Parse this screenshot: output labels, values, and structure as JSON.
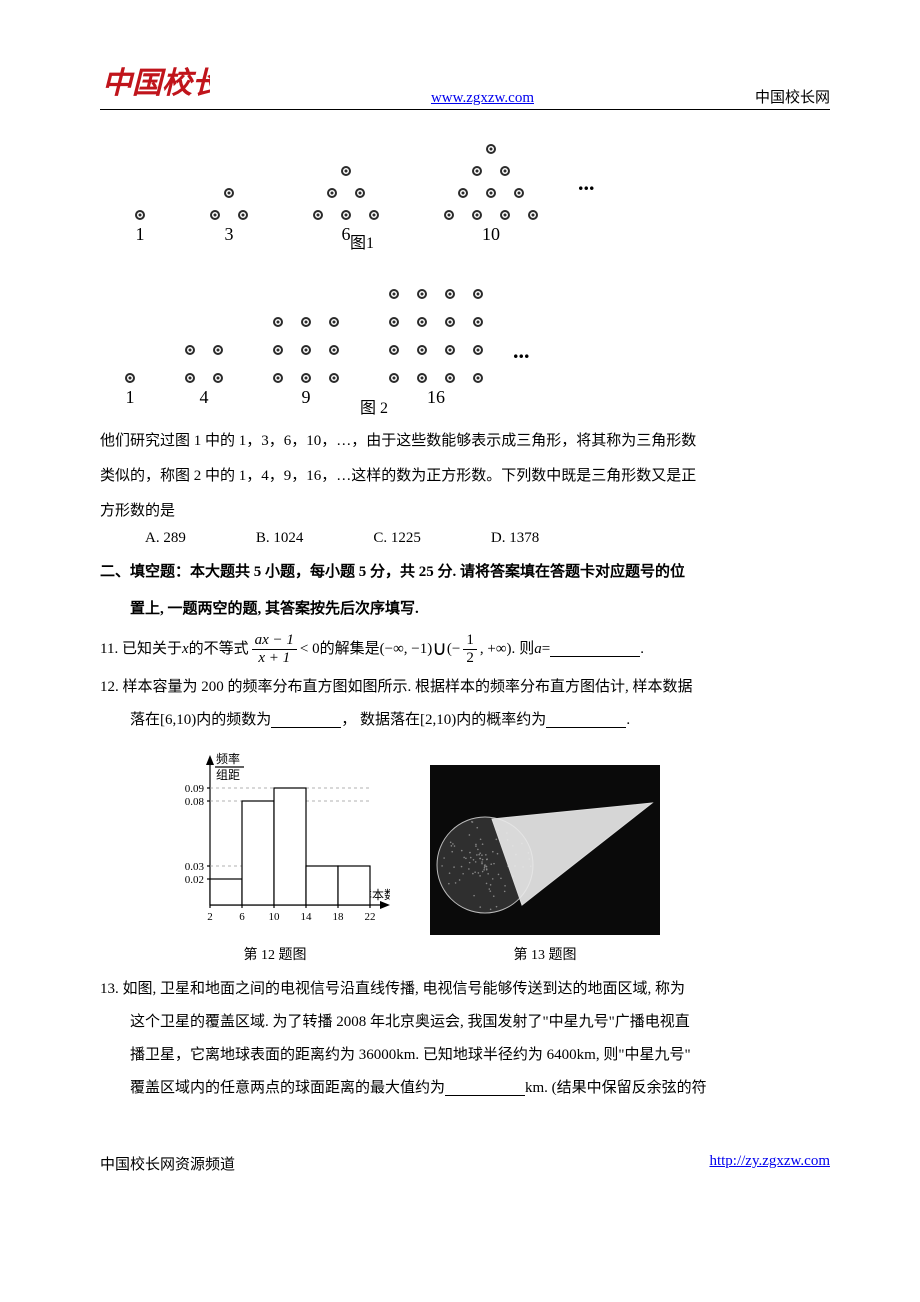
{
  "header": {
    "logo_text": "中国校长",
    "url": "www.zgxzw.com",
    "right_text": "中国校长网"
  },
  "fig1": {
    "label": "图1",
    "groups": [
      {
        "rows": [
          [
            0
          ]
        ],
        "num": "1"
      },
      {
        "rows": [
          [
            0
          ],
          [
            -1,
            1
          ]
        ],
        "num": "3"
      },
      {
        "rows": [
          [
            0
          ],
          [
            -1,
            1
          ],
          [
            -2,
            0,
            2
          ]
        ],
        "num": "6"
      },
      {
        "rows": [
          [
            0
          ],
          [
            -1,
            1
          ],
          [
            -2,
            0,
            2
          ],
          [
            -3,
            -1,
            1,
            3
          ]
        ],
        "num": "10"
      }
    ],
    "dot_color": "#2b2b2b",
    "ellipsis": "..."
  },
  "fig2": {
    "label": "图 2",
    "groups": [
      {
        "n": 1,
        "num": "1"
      },
      {
        "n": 2,
        "num": "4"
      },
      {
        "n": 3,
        "num": "9"
      },
      {
        "n": 4,
        "num": "16"
      }
    ],
    "dot_color": "#2b2b2b",
    "ellipsis": "..."
  },
  "para_after_figs_1": "他们研究过图 1 中的 1，3，6，10，…，由于这些数能够表示成三角形，将其称为三角形数",
  "para_after_figs_2": "类似的，称图 2 中的 1，4，9，16，…这样的数为正方形数。下列数中既是三角形数又是正",
  "para_after_figs_3": "方形数的是",
  "q10_options": {
    "A": "A. 289",
    "B": "B. 1024",
    "C": "C. 1225",
    "D": "D. 1378"
  },
  "section2_line1": "二、填空题：本大题共 5 小题，每小题 5 分，共 25 分. 请将答案填在答题卡对应题号的位",
  "section2_line2": "置上, 一题两空的题, 其答案按先后次序填写.",
  "q11": {
    "pre": "11.  已知关于",
    "x": "x",
    "mid1": "的不等式",
    "frac_num": "ax − 1",
    "frac_den": "x + 1",
    "lt0": "< 0",
    "mid2": "的解集是",
    "set_a": "(−∞, −1)",
    "union": "∪",
    "set_b_open": "(−",
    "half_num": "1",
    "half_den": "2",
    "set_b_close": ", +∞).",
    "then": "则",
    "a": "a",
    "eq": " = "
  },
  "q12": {
    "line1_a": "12. 样本容量为 200 的频率分布直方图如图所示. 根据样本的频率分布直方图估计, 样本数据",
    "line2_a": "落在",
    "int1": "[6,10)",
    "line2_b": "内的频数为",
    "line2_c": "，  数据落在",
    "int2": "[2,10)",
    "line2_d": "内的概率约为",
    "line2_e": "."
  },
  "chart12": {
    "ylabel_top": "频率",
    "ylabel_bot": "组距",
    "xlabel": "样本数据",
    "yticks": [
      "0.02",
      "0.03",
      "0.08",
      "0.09"
    ],
    "ytick_vals": [
      0.02,
      0.03,
      0.08,
      0.09
    ],
    "xticks": [
      "2",
      "6",
      "10",
      "14",
      "18",
      "22"
    ],
    "bars": [
      {
        "x": 2,
        "w": 4,
        "h": 0.02
      },
      {
        "x": 6,
        "w": 4,
        "h": 0.08
      },
      {
        "x": 10,
        "w": 4,
        "h": 0.09
      },
      {
        "x": 14,
        "w": 4,
        "h": 0.03
      },
      {
        "x": 18,
        "w": 4,
        "h": 0.03
      }
    ],
    "caption": "第 12 题图",
    "axis_color": "#000000",
    "bar_fill": "#ffffff",
    "bar_stroke": "#000000"
  },
  "fig13": {
    "caption": "第 13 题图",
    "bg": "#0a0a0a",
    "cone_fill": "#e8e8e8"
  },
  "q13": {
    "l1": "13. 如图, 卫星和地面之间的电视信号沿直线传播, 电视信号能够传送到达的地面区域, 称为",
    "l2": "这个卫星的覆盖区域. 为了转播 2008 年北京奥运会, 我国发射了\"中星九号\"广播电视直",
    "l3": "播卫星，它离地球表面的距离约为 36000km. 已知地球半径约为 6400km, 则\"中星九号\"",
    "l4_a": "覆盖区域内的任意两点的球面距离的最大值约为",
    "l4_b": "km. (结果中保留反余弦的符"
  },
  "footer": {
    "left": "中国校长网资源频道",
    "right": "http://zy.zgxzw.com"
  }
}
